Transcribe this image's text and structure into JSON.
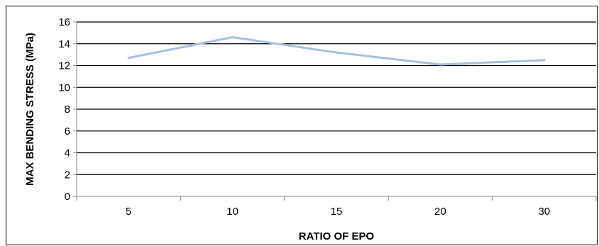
{
  "chart_data": {
    "type": "line",
    "title": "",
    "xlabel": "RATIO OF EPO",
    "ylabel": "MAX BENDING STRESS (MPa)",
    "categories": [
      "5",
      "10",
      "15",
      "20",
      "30"
    ],
    "series": [
      {
        "values": [
          12.7,
          14.6,
          13.2,
          12.1,
          12.5
        ]
      }
    ],
    "ylim": [
      0,
      16
    ],
    "yticks": [
      "0",
      "2",
      "4",
      "6",
      "8",
      "10",
      "12",
      "14",
      "16"
    ],
    "grid": true,
    "legend": "none",
    "colors": {
      "line": "#a7bfdd",
      "grid": "#000000",
      "axis": "#8a8a8a"
    }
  }
}
